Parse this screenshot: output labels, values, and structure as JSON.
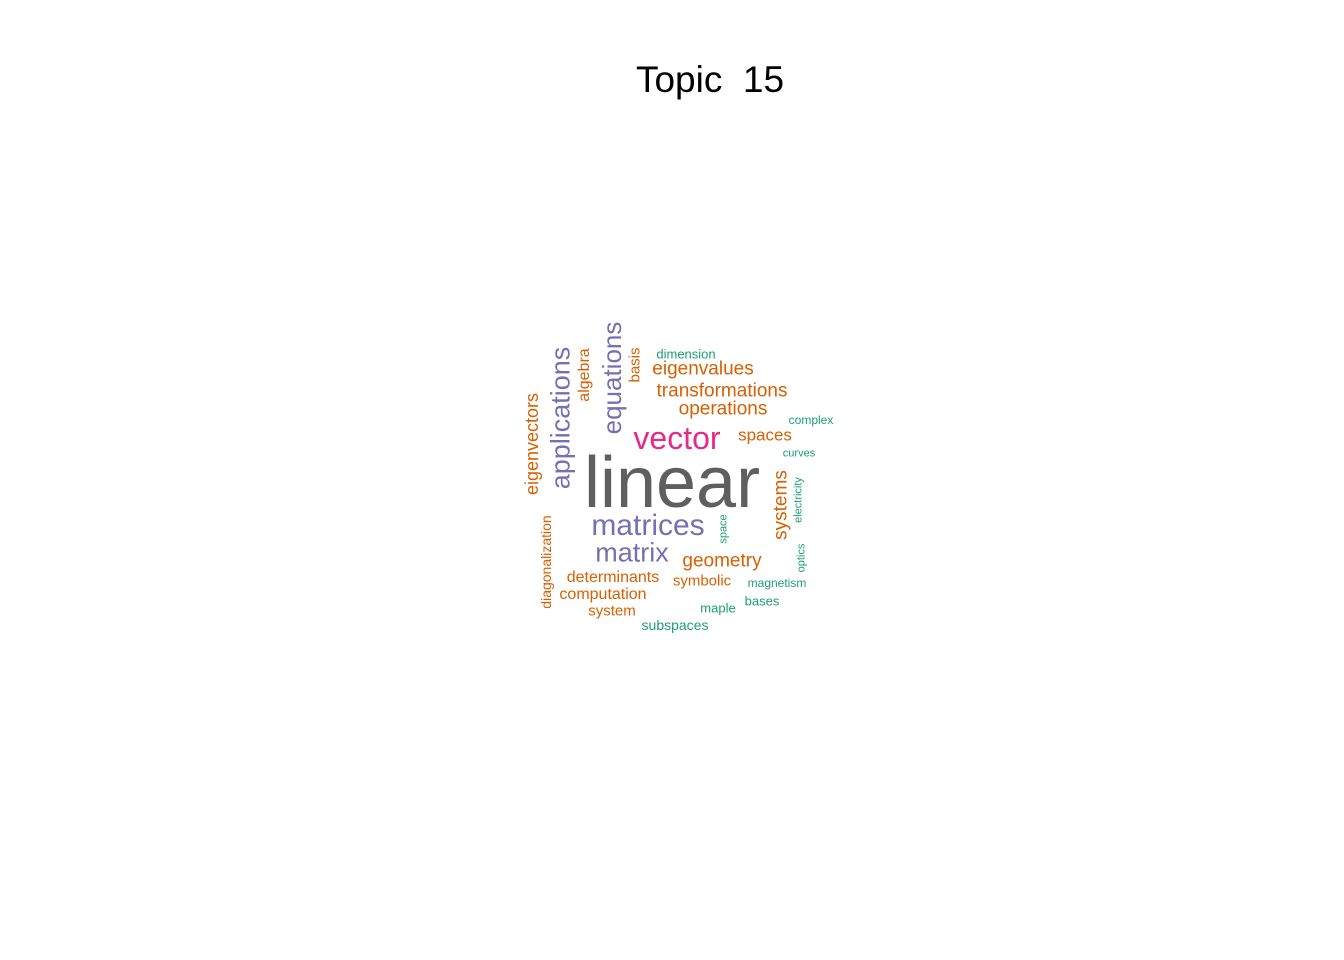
{
  "title": "Topic  15",
  "palette": {
    "gray": "#5f5f5f",
    "purple": "#7570b3",
    "pink": "#e7298a",
    "orange": "#d95f02",
    "teal": "#1b9e77"
  },
  "words": [
    {
      "text": "linear",
      "color": "gray"
    },
    {
      "text": "vector",
      "color": "pink"
    },
    {
      "text": "matrices",
      "color": "purple"
    },
    {
      "text": "matrix",
      "color": "purple"
    },
    {
      "text": "applications",
      "color": "purple"
    },
    {
      "text": "equations",
      "color": "purple"
    },
    {
      "text": "eigenvectors",
      "color": "orange"
    },
    {
      "text": "algebra",
      "color": "orange"
    },
    {
      "text": "basis",
      "color": "orange"
    },
    {
      "text": "eigenvalues",
      "color": "orange"
    },
    {
      "text": "transformations",
      "color": "orange"
    },
    {
      "text": "operations",
      "color": "orange"
    },
    {
      "text": "spaces",
      "color": "orange"
    },
    {
      "text": "systems",
      "color": "orange"
    },
    {
      "text": "geometry",
      "color": "orange"
    },
    {
      "text": "determinants",
      "color": "orange"
    },
    {
      "text": "computation",
      "color": "orange"
    },
    {
      "text": "symbolic",
      "color": "orange"
    },
    {
      "text": "system",
      "color": "orange"
    },
    {
      "text": "diagonalization",
      "color": "orange"
    },
    {
      "text": "dimension",
      "color": "teal"
    },
    {
      "text": "complex",
      "color": "teal"
    },
    {
      "text": "curves",
      "color": "teal"
    },
    {
      "text": "electricity",
      "color": "teal"
    },
    {
      "text": "space",
      "color": "teal"
    },
    {
      "text": "optics",
      "color": "teal"
    },
    {
      "text": "magnetism",
      "color": "teal"
    },
    {
      "text": "bases",
      "color": "teal"
    },
    {
      "text": "maple",
      "color": "teal"
    },
    {
      "text": "subspaces",
      "color": "teal"
    }
  ]
}
